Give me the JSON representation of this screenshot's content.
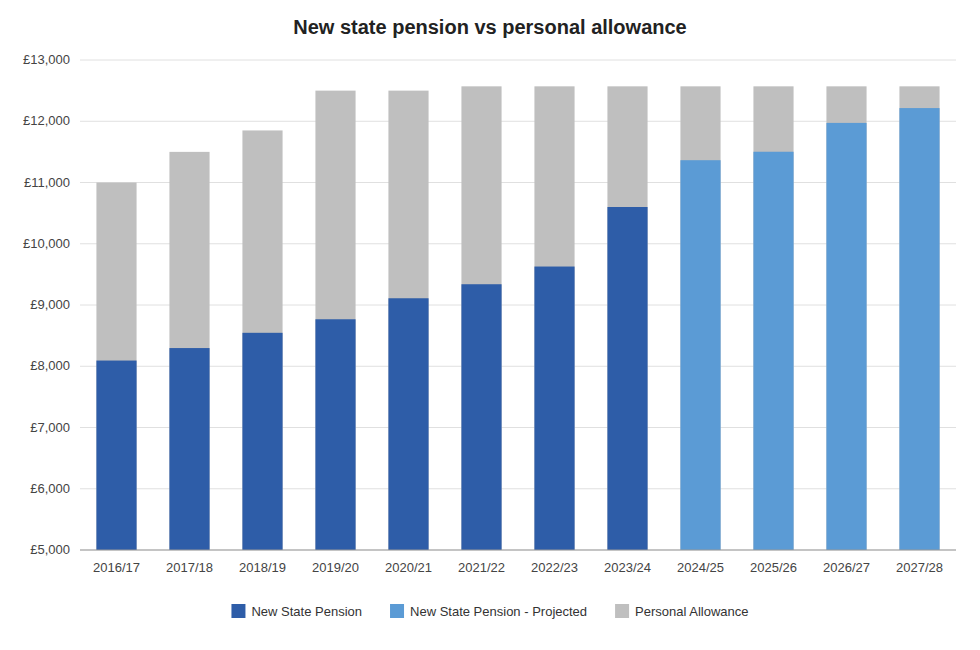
{
  "chart_data": {
    "type": "bar",
    "title": "New state pension vs personal allowance",
    "categories": [
      "2016/17",
      "2017/18",
      "2018/19",
      "2019/20",
      "2020/21",
      "2021/22",
      "2022/23",
      "2023/24",
      "2024/25",
      "2025/26",
      "2026/27",
      "2027/28"
    ],
    "series": [
      {
        "name": "New State Pension",
        "color": "#2E5DA8",
        "values": [
          8093,
          8297,
          8546,
          8767,
          9110,
          9339,
          9628,
          10600,
          null,
          null,
          null,
          null
        ]
      },
      {
        "name": "New State Pension - Projected",
        "color": "#5B9BD5",
        "values": [
          null,
          null,
          null,
          null,
          null,
          null,
          null,
          null,
          11364,
          11502,
          11973,
          12215
        ]
      },
      {
        "name": "Personal Allowance",
        "color": "#BFBFBF",
        "values": [
          11000,
          11500,
          11850,
          12500,
          12500,
          12570,
          12570,
          12570,
          12570,
          12570,
          12570,
          12570
        ]
      }
    ],
    "ylim": [
      5000,
      13000
    ],
    "yticks": [
      {
        "value": 5000,
        "label": "£5,000"
      },
      {
        "value": 6000,
        "label": "£6,000"
      },
      {
        "value": 7000,
        "label": "£7,000"
      },
      {
        "value": 8000,
        "label": "£8,000"
      },
      {
        "value": 9000,
        "label": "£9,000"
      },
      {
        "value": 10000,
        "label": "£10,000"
      },
      {
        "value": 11000,
        "label": "£11,000"
      },
      {
        "value": 12000,
        "label": "£12,000"
      },
      {
        "value": 13000,
        "label": "£13,000"
      }
    ],
    "grid": true,
    "legend": "bottom"
  }
}
